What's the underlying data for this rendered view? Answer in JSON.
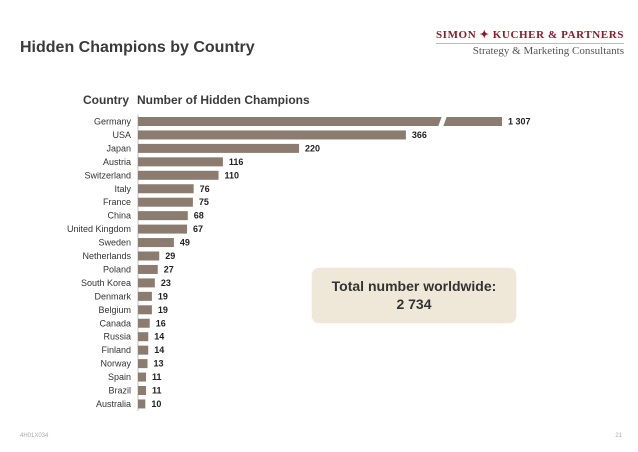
{
  "header": {
    "title": "Hidden Champions by Country",
    "brand_name": "SIMON ✦ KUCHER & PARTNERS",
    "brand_tagline": "Strategy & Marketing Consultants"
  },
  "chart_data": {
    "type": "bar",
    "orientation": "horizontal",
    "xlabel": "Number of Hidden Champions",
    "ylabel": "Country",
    "categories": [
      "Germany",
      "USA",
      "Japan",
      "Austria",
      "Switzerland",
      "Italy",
      "France",
      "China",
      "United Kingdom",
      "Sweden",
      "Netherlands",
      "Poland",
      "South Korea",
      "Denmark",
      "Belgium",
      "Canada",
      "Russia",
      "Finland",
      "Norway",
      "Spain",
      "Brazil",
      "Australia"
    ],
    "values": [
      1307,
      366,
      220,
      116,
      110,
      76,
      75,
      68,
      67,
      49,
      29,
      27,
      23,
      19,
      19,
      16,
      14,
      14,
      13,
      11,
      11,
      10
    ],
    "value_labels": [
      "1 307",
      "366",
      "220",
      "116",
      "110",
      "76",
      "75",
      "68",
      "67",
      "49",
      "29",
      "27",
      "23",
      "19",
      "19",
      "16",
      "14",
      "14",
      "13",
      "11",
      "11",
      "10"
    ],
    "axis_break": "Germany bar broken",
    "bar_color": "#8c7b6f",
    "grid": false
  },
  "callout": {
    "label": "Total number worldwide:",
    "value": "2 734",
    "background": "#efe8d9"
  },
  "footer": {
    "left": "4H01X034",
    "right": "21"
  }
}
